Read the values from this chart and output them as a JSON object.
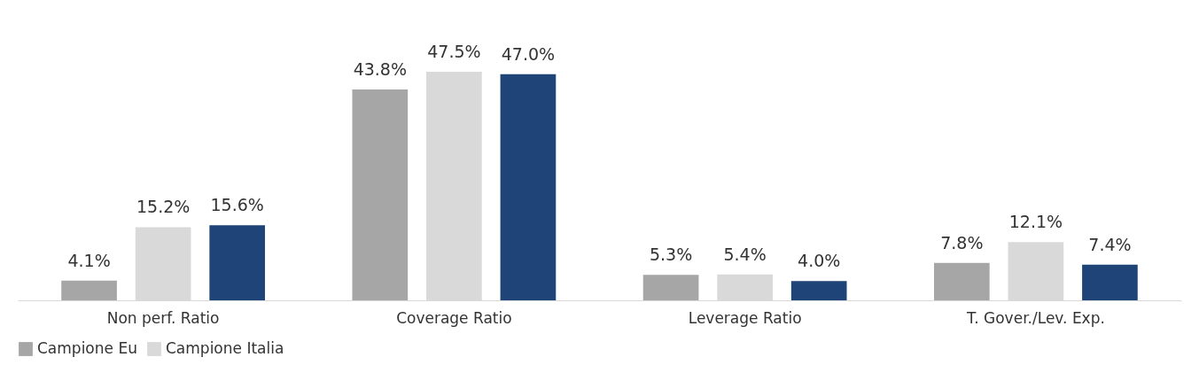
{
  "chart_data": {
    "type": "bar",
    "categories": [
      "Non perf. Ratio",
      "Coverage Ratio",
      "Leverage Ratio",
      "T. Gover./Lev. Exp."
    ],
    "series": [
      {
        "name": "Campione Eu",
        "color": "#a6a6a6",
        "values": [
          4.1,
          43.8,
          5.3,
          7.8
        ],
        "value_labels": [
          "4.1%",
          "43.8%",
          "5.3%",
          "7.8%"
        ]
      },
      {
        "name": "Campione Italia",
        "color": "#d9d9d9",
        "values": [
          15.2,
          47.5,
          5.4,
          12.1
        ],
        "value_labels": [
          "15.2%",
          "47.5%",
          "5.4%",
          "12.1%"
        ]
      },
      {
        "color": "#1f4578",
        "values": [
          15.6,
          47.0,
          4.0,
          7.4
        ],
        "value_labels": [
          "15.6%",
          "47.0%",
          "4.0%",
          "7.4%"
        ]
      }
    ],
    "legend": "bottom",
    "grid": false
  }
}
